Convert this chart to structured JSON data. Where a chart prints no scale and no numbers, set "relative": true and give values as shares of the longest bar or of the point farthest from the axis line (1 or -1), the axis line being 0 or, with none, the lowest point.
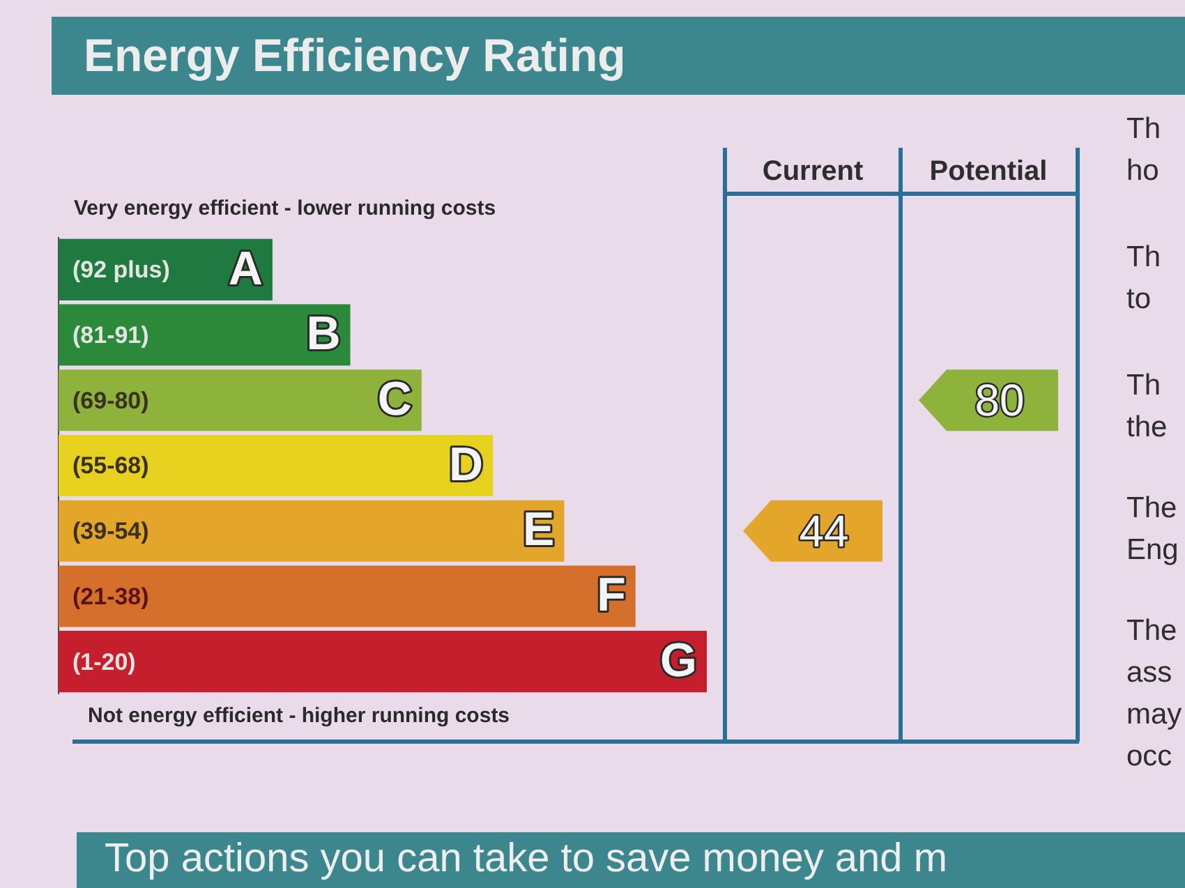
{
  "chart_data": {
    "type": "bar",
    "orientation": "horizontal",
    "relative": true,
    "title": "Energy Efficiency Rating",
    "categories": [
      "A",
      "B",
      "C",
      "D",
      "E",
      "F",
      "G"
    ],
    "values": [
      0.33,
      0.45,
      0.56,
      0.67,
      0.78,
      0.89,
      1
    ],
    "colors": [
      "#1e7a3e",
      "#2b8a3a",
      "#8db33c",
      "#e6d21e",
      "#e3a52a",
      "#d5702c",
      "#c51f2e"
    ],
    "annotations": [
      "Very energy efficient - lower running costs",
      "Not energy efficient - higher running costs",
      "(92 plus)",
      "(81-91)",
      "(69-80)",
      "(55-68)",
      "(39-54)",
      "(21-38)",
      "(1-20)",
      "Current",
      "Potential",
      "44",
      "80",
      "Th",
      "ho",
      "Th",
      "to",
      "Th",
      "the",
      "The",
      "Eng",
      "The",
      "ass",
      "may",
      "occ",
      "Top actions you can take to save money and m"
    ]
  }
}
